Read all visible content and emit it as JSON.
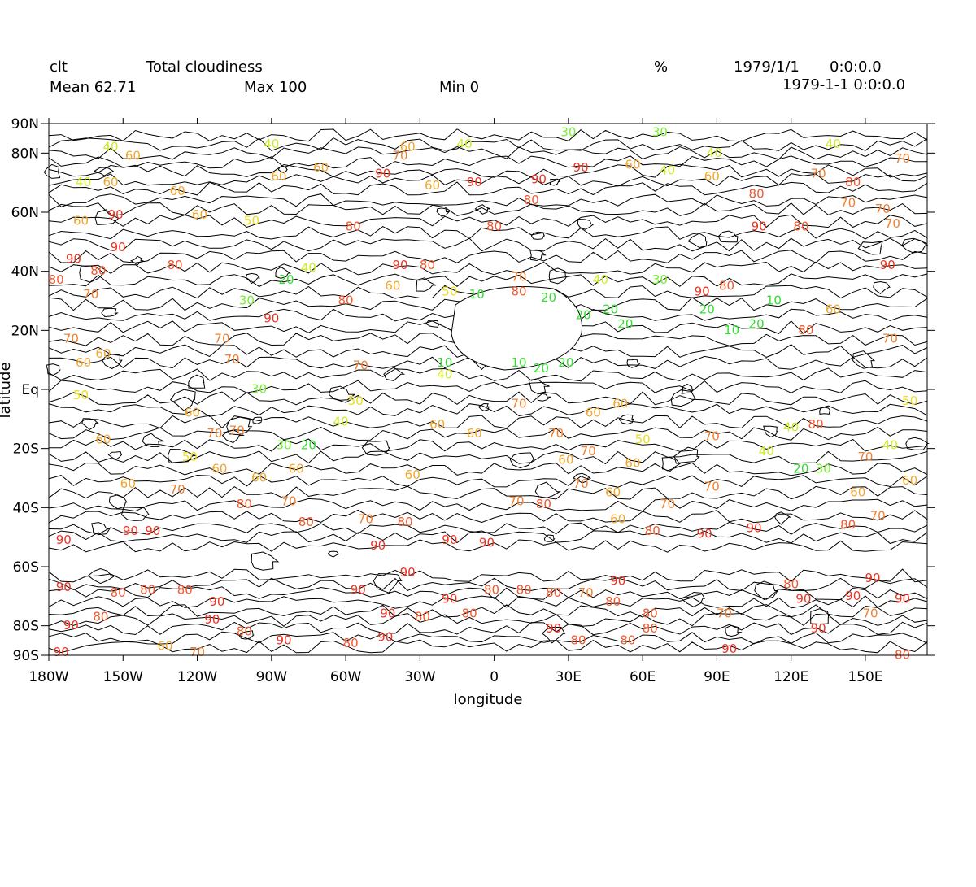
{
  "header": {
    "var_name": "clt",
    "long_name": "Total cloudiness",
    "units": "%",
    "date": "1979/1/1",
    "time": "0:0:0.0",
    "mean": "Mean 62.71",
    "max": "Max 100",
    "min": "Min 0",
    "datetime": "1979-1-1 0:0:0.0"
  },
  "axes": {
    "xlabel": "longitude",
    "ylabel": "latitude",
    "x_range": [
      -180,
      175
    ],
    "y_range": [
      -90,
      90
    ],
    "x_ticks": [
      {
        "value": -180,
        "label": "180W"
      },
      {
        "value": -150,
        "label": "150W"
      },
      {
        "value": -120,
        "label": "120W"
      },
      {
        "value": -90,
        "label": "90W"
      },
      {
        "value": -60,
        "label": "60W"
      },
      {
        "value": -30,
        "label": "30W"
      },
      {
        "value": 0,
        "label": "0"
      },
      {
        "value": 30,
        "label": "30E"
      },
      {
        "value": 60,
        "label": "60E"
      },
      {
        "value": 90,
        "label": "90E"
      },
      {
        "value": 120,
        "label": "120E"
      },
      {
        "value": 150,
        "label": "150E"
      }
    ],
    "y_ticks": [
      {
        "value": 90,
        "label": "90N"
      },
      {
        "value": 80,
        "label": "80N"
      },
      {
        "value": 60,
        "label": "60N"
      },
      {
        "value": 40,
        "label": "40N"
      },
      {
        "value": 20,
        "label": "20N"
      },
      {
        "value": 0,
        "label": "Eq"
      },
      {
        "value": -20,
        "label": "20S"
      },
      {
        "value": -40,
        "label": "40S"
      },
      {
        "value": -60,
        "label": "60S"
      },
      {
        "value": -80,
        "label": "80S"
      },
      {
        "value": -90,
        "label": "90S"
      }
    ]
  },
  "level_colors": {
    "10": "#33dd33",
    "20": "#33dd33",
    "30": "#77ee33",
    "40": "#ccee22",
    "50": "#eedd22",
    "60": "#f0a830",
    "70": "#f08030",
    "80": "#f05a30",
    "90": "#ee3322"
  },
  "contour_labels": [
    {
      "lon": -155,
      "lat": 82,
      "v": "40"
    },
    {
      "lon": -146,
      "lat": 79,
      "v": "60"
    },
    {
      "lon": -90,
      "lat": 83,
      "v": "40"
    },
    {
      "lon": -35,
      "lat": 82,
      "v": "60"
    },
    {
      "lon": -12,
      "lat": 83,
      "v": "40"
    },
    {
      "lon": 30,
      "lat": 87,
      "v": "30"
    },
    {
      "lon": 67,
      "lat": 87,
      "v": "30"
    },
    {
      "lon": 89,
      "lat": 80,
      "v": "40"
    },
    {
      "lon": 137,
      "lat": 83,
      "v": "40"
    },
    {
      "lon": 165,
      "lat": 78,
      "v": "70"
    },
    {
      "lon": -166,
      "lat": 70,
      "v": "40"
    },
    {
      "lon": -155,
      "lat": 70,
      "v": "60"
    },
    {
      "lon": -128,
      "lat": 67,
      "v": "60"
    },
    {
      "lon": -87,
      "lat": 72,
      "v": "60"
    },
    {
      "lon": -70,
      "lat": 75,
      "v": "60"
    },
    {
      "lon": -45,
      "lat": 73,
      "v": "90"
    },
    {
      "lon": -38,
      "lat": 79,
      "v": "70"
    },
    {
      "lon": -25,
      "lat": 69,
      "v": "60"
    },
    {
      "lon": -8,
      "lat": 70,
      "v": "90"
    },
    {
      "lon": 18,
      "lat": 71,
      "v": "90"
    },
    {
      "lon": 35,
      "lat": 75,
      "v": "90"
    },
    {
      "lon": 56,
      "lat": 76,
      "v": "60"
    },
    {
      "lon": 70,
      "lat": 74,
      "v": "40"
    },
    {
      "lon": 88,
      "lat": 72,
      "v": "60"
    },
    {
      "lon": 131,
      "lat": 73,
      "v": "70"
    },
    {
      "lon": 145,
      "lat": 70,
      "v": "80"
    },
    {
      "lon": -167,
      "lat": 57,
      "v": "60"
    },
    {
      "lon": -153,
      "lat": 59,
      "v": "90"
    },
    {
      "lon": -119,
      "lat": 59,
      "v": "60"
    },
    {
      "lon": -98,
      "lat": 57,
      "v": "50"
    },
    {
      "lon": -57,
      "lat": 55,
      "v": "80"
    },
    {
      "lon": 0,
      "lat": 55,
      "v": "80"
    },
    {
      "lon": 15,
      "lat": 64,
      "v": "80"
    },
    {
      "lon": 106,
      "lat": 66,
      "v": "80"
    },
    {
      "lon": 143,
      "lat": 63,
      "v": "70"
    },
    {
      "lon": 157,
      "lat": 61,
      "v": "70"
    },
    {
      "lon": 161,
      "lat": 56,
      "v": "70"
    },
    {
      "lon": 107,
      "lat": 55,
      "v": "90"
    },
    {
      "lon": 124,
      "lat": 55,
      "v": "80"
    },
    {
      "lon": -152,
      "lat": 48,
      "v": "90"
    },
    {
      "lon": -170,
      "lat": 44,
      "v": "90"
    },
    {
      "lon": -160,
      "lat": 40,
      "v": "80"
    },
    {
      "lon": -177,
      "lat": 37,
      "v": "80"
    },
    {
      "lon": -163,
      "lat": 32,
      "v": "70"
    },
    {
      "lon": -129,
      "lat": 42,
      "v": "80"
    },
    {
      "lon": -84,
      "lat": 37,
      "v": "20"
    },
    {
      "lon": -75,
      "lat": 41,
      "v": "40"
    },
    {
      "lon": -100,
      "lat": 30,
      "v": "30"
    },
    {
      "lon": -90,
      "lat": 24,
      "v": "90"
    },
    {
      "lon": -60,
      "lat": 30,
      "v": "80"
    },
    {
      "lon": -38,
      "lat": 42,
      "v": "90"
    },
    {
      "lon": -27,
      "lat": 42,
      "v": "80"
    },
    {
      "lon": -41,
      "lat": 35,
      "v": "60"
    },
    {
      "lon": -18,
      "lat": 33,
      "v": "50"
    },
    {
      "lon": -7,
      "lat": 32,
      "v": "10"
    },
    {
      "lon": 10,
      "lat": 38,
      "v": "70"
    },
    {
      "lon": 10,
      "lat": 33,
      "v": "80"
    },
    {
      "lon": 22,
      "lat": 31,
      "v": "20"
    },
    {
      "lon": 43,
      "lat": 37,
      "v": "40"
    },
    {
      "lon": 47,
      "lat": 27,
      "v": "20"
    },
    {
      "lon": 36,
      "lat": 25,
      "v": "20"
    },
    {
      "lon": 53,
      "lat": 22,
      "v": "20"
    },
    {
      "lon": 67,
      "lat": 37,
      "v": "30"
    },
    {
      "lon": 84,
      "lat": 33,
      "v": "90"
    },
    {
      "lon": 86,
      "lat": 27,
      "v": "20"
    },
    {
      "lon": 94,
      "lat": 35,
      "v": "80"
    },
    {
      "lon": 96,
      "lat": 20,
      "v": "10"
    },
    {
      "lon": 106,
      "lat": 22,
      "v": "20"
    },
    {
      "lon": 113,
      "lat": 30,
      "v": "10"
    },
    {
      "lon": 126,
      "lat": 20,
      "v": "80"
    },
    {
      "lon": 137,
      "lat": 27,
      "v": "60"
    },
    {
      "lon": 160,
      "lat": 17,
      "v": "70"
    },
    {
      "lon": 159,
      "lat": 42,
      "v": "90"
    },
    {
      "lon": -171,
      "lat": 17,
      "v": "70"
    },
    {
      "lon": -158,
      "lat": 12,
      "v": "60"
    },
    {
      "lon": -110,
      "lat": 17,
      "v": "70"
    },
    {
      "lon": -106,
      "lat": 10,
      "v": "70"
    },
    {
      "lon": -166,
      "lat": 9,
      "v": "60"
    },
    {
      "lon": -167,
      "lat": -2,
      "v": "50"
    },
    {
      "lon": -95,
      "lat": 0,
      "v": "30"
    },
    {
      "lon": -20,
      "lat": 9,
      "v": "10"
    },
    {
      "lon": 10,
      "lat": 9,
      "v": "10"
    },
    {
      "lon": 19,
      "lat": 7,
      "v": "20"
    },
    {
      "lon": 29,
      "lat": 9,
      "v": "20"
    },
    {
      "lon": -20,
      "lat": 5,
      "v": "40"
    },
    {
      "lon": -54,
      "lat": 8,
      "v": "70"
    },
    {
      "lon": -56,
      "lat": -4,
      "v": "50"
    },
    {
      "lon": -62,
      "lat": -11,
      "v": "40"
    },
    {
      "lon": -122,
      "lat": -8,
      "v": "60"
    },
    {
      "lon": -113,
      "lat": -15,
      "v": "70"
    },
    {
      "lon": -104,
      "lat": -14,
      "v": "70"
    },
    {
      "lon": -85,
      "lat": -19,
      "v": "30"
    },
    {
      "lon": -75,
      "lat": -19,
      "v": "20"
    },
    {
      "lon": -23,
      "lat": -12,
      "v": "60"
    },
    {
      "lon": -8,
      "lat": -15,
      "v": "60"
    },
    {
      "lon": 10,
      "lat": -5,
      "v": "70"
    },
    {
      "lon": 25,
      "lat": -15,
      "v": "70"
    },
    {
      "lon": 40,
      "lat": -8,
      "v": "60"
    },
    {
      "lon": 51,
      "lat": -5,
      "v": "60"
    },
    {
      "lon": 60,
      "lat": -17,
      "v": "50"
    },
    {
      "lon": 88,
      "lat": -16,
      "v": "70"
    },
    {
      "lon": 120,
      "lat": -13,
      "v": "40"
    },
    {
      "lon": 130,
      "lat": -12,
      "v": "80"
    },
    {
      "lon": 160,
      "lat": -19,
      "v": "40"
    },
    {
      "lon": 168,
      "lat": -4,
      "v": "50"
    },
    {
      "lon": -158,
      "lat": -17,
      "v": "60"
    },
    {
      "lon": -123,
      "lat": -23,
      "v": "50"
    },
    {
      "lon": -111,
      "lat": -27,
      "v": "60"
    },
    {
      "lon": -148,
      "lat": -32,
      "v": "60"
    },
    {
      "lon": -128,
      "lat": -34,
      "v": "70"
    },
    {
      "lon": -95,
      "lat": -30,
      "v": "60"
    },
    {
      "lon": -80,
      "lat": -27,
      "v": "60"
    },
    {
      "lon": -33,
      "lat": -29,
      "v": "60"
    },
    {
      "lon": 29,
      "lat": -24,
      "v": "60"
    },
    {
      "lon": 56,
      "lat": -25,
      "v": "60"
    },
    {
      "lon": 38,
      "lat": -21,
      "v": "70"
    },
    {
      "lon": 110,
      "lat": -21,
      "v": "40"
    },
    {
      "lon": 124,
      "lat": -27,
      "v": "20"
    },
    {
      "lon": 133,
      "lat": -27,
      "v": "30"
    },
    {
      "lon": 150,
      "lat": -23,
      "v": "70"
    },
    {
      "lon": 168,
      "lat": -31,
      "v": "60"
    },
    {
      "lon": 147,
      "lat": -35,
      "v": "60"
    },
    {
      "lon": -101,
      "lat": -39,
      "v": "80"
    },
    {
      "lon": -83,
      "lat": -38,
      "v": "70"
    },
    {
      "lon": -76,
      "lat": -45,
      "v": "80"
    },
    {
      "lon": -52,
      "lat": -44,
      "v": "70"
    },
    {
      "lon": -36,
      "lat": -45,
      "v": "80"
    },
    {
      "lon": 9,
      "lat": -38,
      "v": "70"
    },
    {
      "lon": 20,
      "lat": -39,
      "v": "80"
    },
    {
      "lon": 35,
      "lat": -32,
      "v": "70"
    },
    {
      "lon": 48,
      "lat": -35,
      "v": "60"
    },
    {
      "lon": 50,
      "lat": -44,
      "v": "60"
    },
    {
      "lon": 70,
      "lat": -39,
      "v": "70"
    },
    {
      "lon": 88,
      "lat": -33,
      "v": "70"
    },
    {
      "lon": 64,
      "lat": -48,
      "v": "80"
    },
    {
      "lon": 105,
      "lat": -47,
      "v": "90"
    },
    {
      "lon": 143,
      "lat": -46,
      "v": "80"
    },
    {
      "lon": 155,
      "lat": -43,
      "v": "70"
    },
    {
      "lon": -174,
      "lat": -51,
      "v": "90"
    },
    {
      "lon": -147,
      "lat": -48,
      "v": "90"
    },
    {
      "lon": -138,
      "lat": -48,
      "v": "90"
    },
    {
      "lon": -47,
      "lat": -53,
      "v": "90"
    },
    {
      "lon": -18,
      "lat": -51,
      "v": "90"
    },
    {
      "lon": -3,
      "lat": -52,
      "v": "90"
    },
    {
      "lon": 85,
      "lat": -49,
      "v": "90"
    },
    {
      "lon": -174,
      "lat": -67,
      "v": "90"
    },
    {
      "lon": -152,
      "lat": -69,
      "v": "80"
    },
    {
      "lon": -140,
      "lat": -68,
      "v": "80"
    },
    {
      "lon": -125,
      "lat": -68,
      "v": "80"
    },
    {
      "lon": -112,
      "lat": -72,
      "v": "90"
    },
    {
      "lon": -114,
      "lat": -78,
      "v": "90"
    },
    {
      "lon": -55,
      "lat": -68,
      "v": "90"
    },
    {
      "lon": -35,
      "lat": -62,
      "v": "90"
    },
    {
      "lon": -43,
      "lat": -76,
      "v": "90"
    },
    {
      "lon": -18,
      "lat": -71,
      "v": "90"
    },
    {
      "lon": -1,
      "lat": -68,
      "v": "80"
    },
    {
      "lon": 12,
      "lat": -68,
      "v": "80"
    },
    {
      "lon": 24,
      "lat": -69,
      "v": "80"
    },
    {
      "lon": 37,
      "lat": -69,
      "v": "70"
    },
    {
      "lon": 50,
      "lat": -65,
      "v": "90"
    },
    {
      "lon": 48,
      "lat": -72,
      "v": "80"
    },
    {
      "lon": -29,
      "lat": -77,
      "v": "80"
    },
    {
      "lon": -10,
      "lat": -76,
      "v": "80"
    },
    {
      "lon": 63,
      "lat": -76,
      "v": "80"
    },
    {
      "lon": 93,
      "lat": -76,
      "v": "70"
    },
    {
      "lon": 120,
      "lat": -66,
      "v": "80"
    },
    {
      "lon": 125,
      "lat": -71,
      "v": "90"
    },
    {
      "lon": 145,
      "lat": -70,
      "v": "90"
    },
    {
      "lon": 153,
      "lat": -64,
      "v": "90"
    },
    {
      "lon": 165,
      "lat": -71,
      "v": "90"
    },
    {
      "lon": 152,
      "lat": -76,
      "v": "70"
    },
    {
      "lon": 131,
      "lat": -81,
      "v": "90"
    },
    {
      "lon": 95,
      "lat": -88,
      "v": "90"
    },
    {
      "lon": -171,
      "lat": -80,
      "v": "90"
    },
    {
      "lon": -159,
      "lat": -77,
      "v": "80"
    },
    {
      "lon": -101,
      "lat": -82,
      "v": "80"
    },
    {
      "lon": -85,
      "lat": -85,
      "v": "90"
    },
    {
      "lon": -58,
      "lat": -86,
      "v": "80"
    },
    {
      "lon": -44,
      "lat": -84,
      "v": "90"
    },
    {
      "lon": 24,
      "lat": -81,
      "v": "90"
    },
    {
      "lon": 34,
      "lat": -85,
      "v": "80"
    },
    {
      "lon": 54,
      "lat": -85,
      "v": "80"
    },
    {
      "lon": 63,
      "lat": -81,
      "v": "80"
    },
    {
      "lon": -133,
      "lat": -87,
      "v": "60"
    },
    {
      "lon": -120,
      "lat": -89,
      "v": "70"
    },
    {
      "lon": -175,
      "lat": -89,
      "v": "90"
    },
    {
      "lon": 165,
      "lat": -90,
      "v": "80"
    }
  ]
}
